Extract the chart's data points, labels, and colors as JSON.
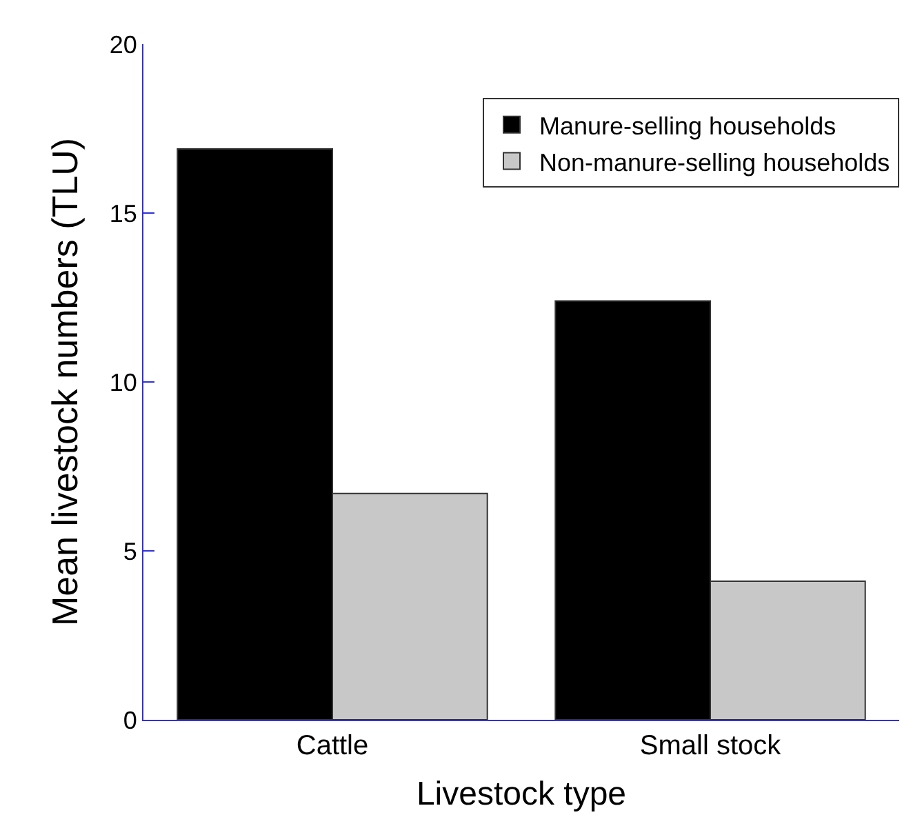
{
  "chart_data": {
    "type": "bar",
    "xlabel": "Livestock type",
    "ylabel": "Mean livestock numbers (TLU)",
    "categories": [
      "Cattle",
      "Small stock"
    ],
    "series": [
      {
        "name": "Manure-selling households",
        "color": "#000000",
        "values": [
          16.9,
          12.4
        ]
      },
      {
        "name": "Non-manure-selling households",
        "color": "#c8c8c8",
        "values": [
          6.7,
          4.1
        ]
      }
    ],
    "ylim": [
      0,
      20
    ],
    "yticks": [
      0,
      5,
      10,
      15,
      20
    ],
    "legend": "top right"
  }
}
